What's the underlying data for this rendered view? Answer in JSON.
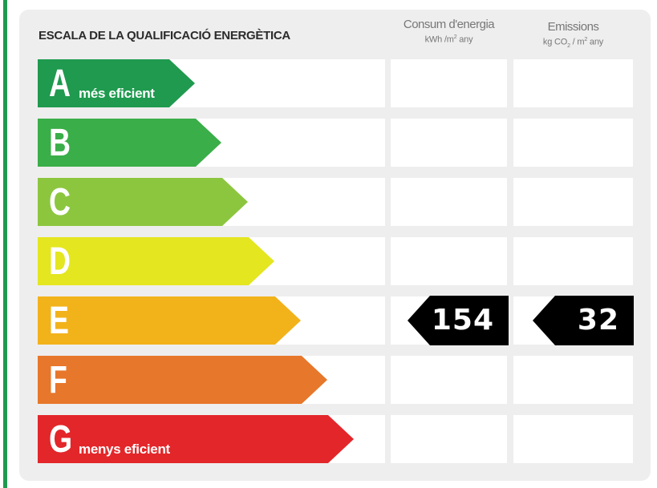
{
  "title": "ESCALA DE LA QUALIFICACIÓ ENERGÈTICA",
  "columns": {
    "consum": {
      "label": "Consum d'energia",
      "unit_a": "kWh /m",
      "unit_sup": "2",
      "unit_b": " any"
    },
    "emissions": {
      "label": "Emissions",
      "unit_a": "kg CO",
      "unit_sub": "2",
      "unit_mid": " / m",
      "unit_sup": "2",
      "unit_b": " any"
    }
  },
  "classes": [
    {
      "letter": "A",
      "note": "més eficient",
      "color": "#1f9a4f"
    },
    {
      "letter": "B",
      "note": "",
      "color": "#3aae48"
    },
    {
      "letter": "C",
      "note": "",
      "color": "#8cc63f"
    },
    {
      "letter": "D",
      "note": "",
      "color": "#e4e61f"
    },
    {
      "letter": "E",
      "note": "",
      "color": "#f2b21a"
    },
    {
      "letter": "F",
      "note": "",
      "color": "#e7772a"
    },
    {
      "letter": "G",
      "note": "menys eficient",
      "color": "#e3262a"
    }
  ],
  "rating": {
    "class": "E",
    "consum_value": "154",
    "emissions_value": "32"
  }
}
